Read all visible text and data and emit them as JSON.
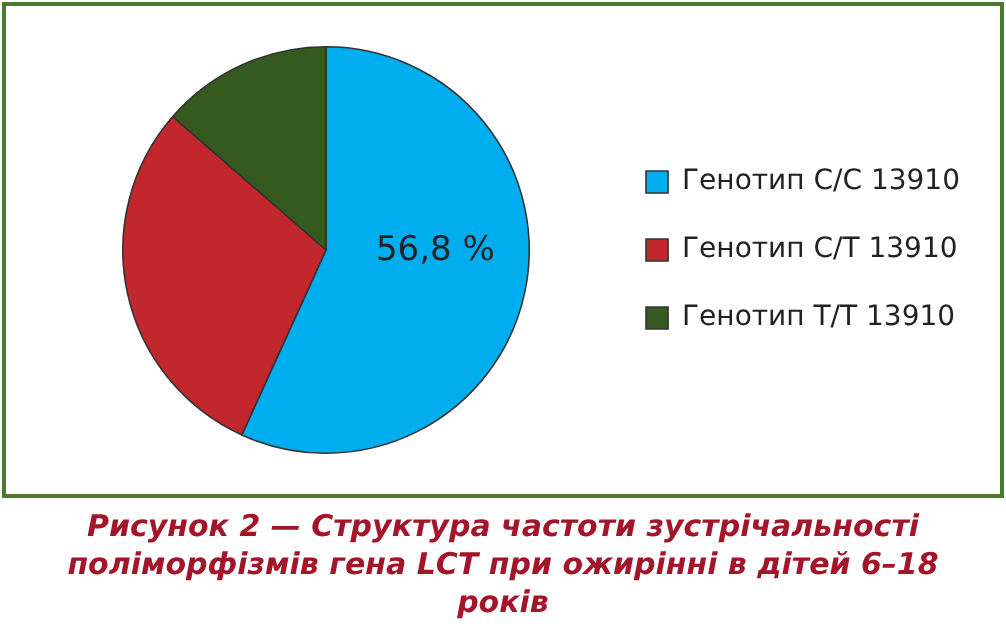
{
  "chart_data": {
    "type": "pie",
    "title": "Рисунок 2 — Структура частоти зустрічальності поліморфізмів гена LCT при ожирінні в дітей 6–18 років",
    "categories": [
      "Генотип C/C 13910",
      "Генотип C/T 13910",
      "Генотип T/T 13910"
    ],
    "values": [
      56.8,
      29.6,
      13.6
    ],
    "colors": [
      "#00adef",
      "#c1272d",
      "#355a1f"
    ],
    "value_labels": [
      "56,8 %",
      null,
      null
    ],
    "legend": "right"
  }
}
